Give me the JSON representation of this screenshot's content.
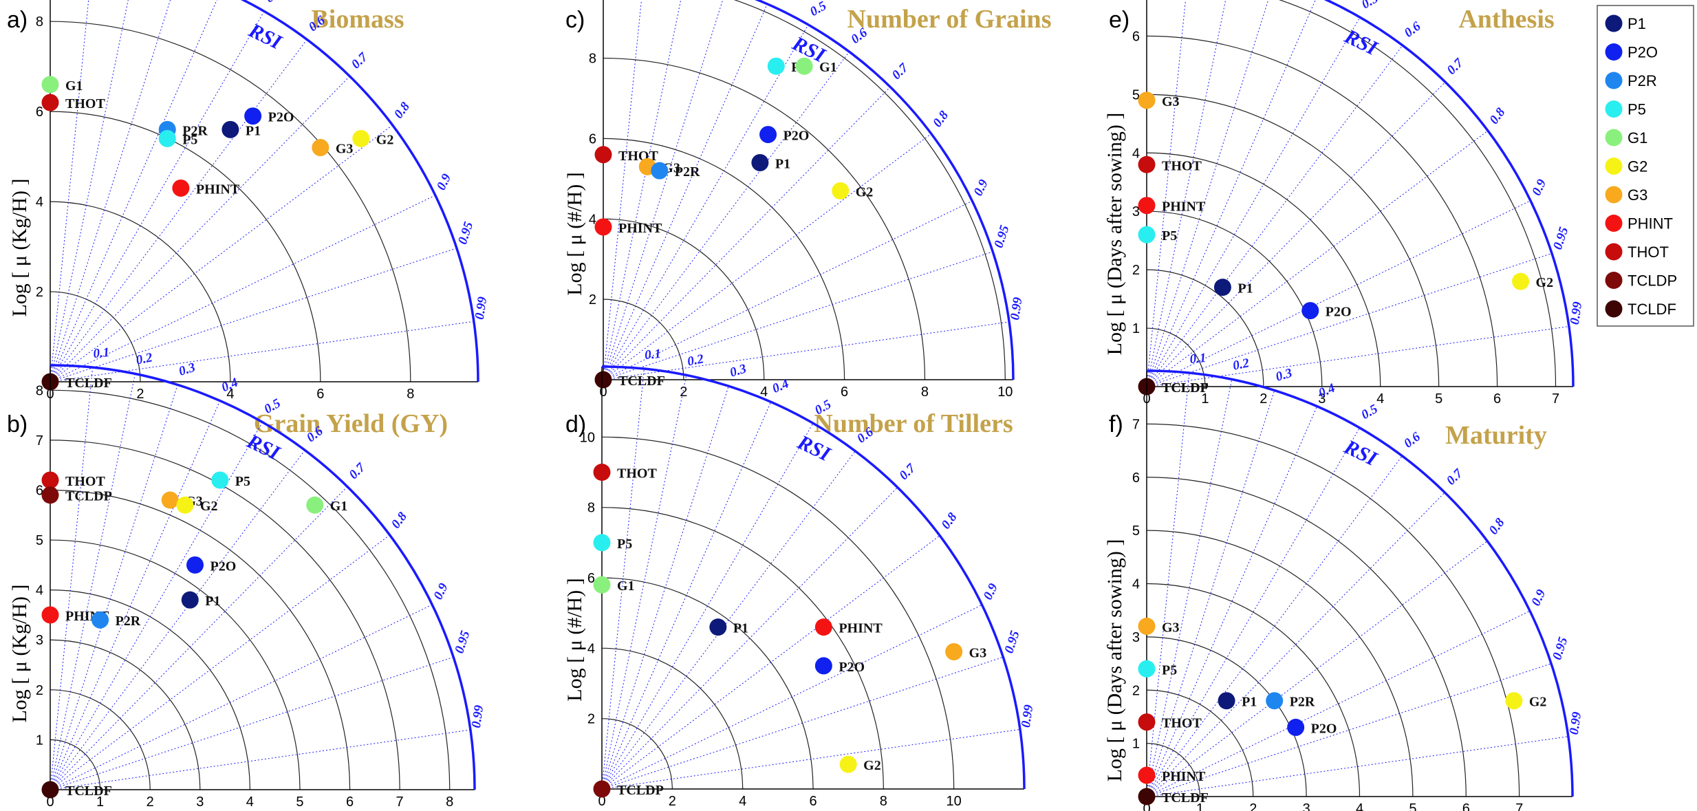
{
  "chart_data": [
    {
      "panel": "a)",
      "title": "Biomass",
      "type": "scatter",
      "subtype": "taylor-diagram",
      "ylabel": "Log [ μ (Kg/H) ]",
      "arc_label": "RSI",
      "rmax": 9.5,
      "ticks": [
        0,
        2,
        4,
        6,
        8
      ],
      "tick_labels": [
        "0",
        "2",
        "4",
        "6",
        "8"
      ],
      "points": [
        {
          "name": "G1",
          "x": 0,
          "y": 6.6
        },
        {
          "name": "THOT",
          "x": 0,
          "y": 6.2
        },
        {
          "name": "P2R",
          "x": 2.6,
          "y": 5.6
        },
        {
          "name": "P5",
          "x": 2.6,
          "y": 5.4
        },
        {
          "name": "P1",
          "x": 4.0,
          "y": 5.6
        },
        {
          "name": "P2O",
          "x": 4.5,
          "y": 5.9
        },
        {
          "name": "G3",
          "x": 6.0,
          "y": 5.2
        },
        {
          "name": "G2",
          "x": 6.9,
          "y": 5.4
        },
        {
          "name": "PHINT",
          "x": 2.9,
          "y": 4.3
        },
        {
          "name": "TCLDF",
          "x": 0,
          "y": 0
        }
      ]
    },
    {
      "panel": "c)",
      "title": "Number of Grains",
      "type": "scatter",
      "subtype": "taylor-diagram",
      "ylabel": "Log [ μ (#/H) ]",
      "arc_label": "RSI",
      "rmax": 10.2,
      "ticks": [
        0,
        2,
        4,
        6,
        8,
        10
      ],
      "tick_labels": [
        "0",
        "2",
        "4",
        "6",
        "8",
        "10"
      ],
      "points": [
        {
          "name": "P5",
          "x": 4.3,
          "y": 7.8
        },
        {
          "name": "G1",
          "x": 5.0,
          "y": 7.8
        },
        {
          "name": "P2O",
          "x": 4.1,
          "y": 6.1
        },
        {
          "name": "P1",
          "x": 3.9,
          "y": 5.4
        },
        {
          "name": "THOT",
          "x": 0,
          "y": 5.6
        },
        {
          "name": "G3",
          "x": 1.1,
          "y": 5.3
        },
        {
          "name": "P2R",
          "x": 1.4,
          "y": 5.2
        },
        {
          "name": "G2",
          "x": 5.9,
          "y": 4.7
        },
        {
          "name": "PHINT",
          "x": 0,
          "y": 3.8
        },
        {
          "name": "TCLDF",
          "x": 0,
          "y": 0
        }
      ]
    },
    {
      "panel": "e)",
      "title": "Anthesis",
      "type": "scatter",
      "subtype": "taylor-diagram",
      "ylabel": "Log [ μ (Days after sowing) ]",
      "arc_label": "RSI",
      "rmax": 7.3,
      "ticks": [
        0,
        1,
        2,
        3,
        4,
        5,
        6,
        7
      ],
      "tick_labels": [
        "0",
        "1",
        "2",
        "3",
        "4",
        "5",
        "6",
        "7"
      ],
      "points": [
        {
          "name": "G3",
          "x": 0,
          "y": 4.9
        },
        {
          "name": "THOT",
          "x": 0,
          "y": 3.8
        },
        {
          "name": "PHINT",
          "x": 0,
          "y": 3.1
        },
        {
          "name": "P5",
          "x": 0,
          "y": 2.6
        },
        {
          "name": "P1",
          "x": 1.3,
          "y": 1.7
        },
        {
          "name": "P2O",
          "x": 2.8,
          "y": 1.3
        },
        {
          "name": "G2",
          "x": 6.4,
          "y": 1.8
        },
        {
          "name": "TCLDF",
          "x": 0,
          "y": 0
        }
      ],
      "overlap_label": "TCLDP"
    },
    {
      "panel": "b)",
      "title": "Grain Yield (GY)",
      "type": "scatter",
      "subtype": "taylor-diagram",
      "ylabel": "Log [ μ (Kg/H) ]",
      "arc_label": "RSI",
      "rmax": 8.5,
      "ticks": [
        0,
        1,
        2,
        3,
        4,
        5,
        6,
        7,
        8
      ],
      "tick_labels": [
        "0",
        "1",
        "2",
        "3",
        "4",
        "5",
        "6",
        "7",
        "8"
      ],
      "points": [
        {
          "name": "THOT",
          "x": 0,
          "y": 6.2
        },
        {
          "name": "TCLDP",
          "x": 0,
          "y": 5.9
        },
        {
          "name": "P5",
          "x": 3.4,
          "y": 6.2
        },
        {
          "name": "G3",
          "x": 2.4,
          "y": 5.8
        },
        {
          "name": "G2",
          "x": 2.7,
          "y": 5.7
        },
        {
          "name": "G1",
          "x": 5.3,
          "y": 5.7
        },
        {
          "name": "P2O",
          "x": 2.9,
          "y": 4.5
        },
        {
          "name": "P1",
          "x": 2.8,
          "y": 3.8
        },
        {
          "name": "PHINT",
          "x": 0,
          "y": 3.5
        },
        {
          "name": "P2R",
          "x": 1.0,
          "y": 3.4
        },
        {
          "name": "TCLDF",
          "x": 0,
          "y": 0
        }
      ]
    },
    {
      "panel": "d)",
      "title": "Number of Tillers",
      "type": "scatter",
      "subtype": "taylor-diagram",
      "ylabel": "Log [ μ (#/H) ]",
      "arc_label": "RSI",
      "rmax": 12,
      "ticks": [
        0,
        2,
        4,
        6,
        8,
        10
      ],
      "tick_labels": [
        "0",
        "2",
        "4",
        "6",
        "8",
        "10"
      ],
      "points": [
        {
          "name": "THOT",
          "x": 0,
          "y": 9.0
        },
        {
          "name": "P5",
          "x": 0,
          "y": 7.0
        },
        {
          "name": "G1",
          "x": 0,
          "y": 5.8
        },
        {
          "name": "P1",
          "x": 3.3,
          "y": 4.6
        },
        {
          "name": "PHINT",
          "x": 6.3,
          "y": 4.6
        },
        {
          "name": "P2O",
          "x": 6.3,
          "y": 3.5
        },
        {
          "name": "G3",
          "x": 10.0,
          "y": 3.9
        },
        {
          "name": "G2",
          "x": 7.0,
          "y": 0.7
        },
        {
          "name": "TCLDP",
          "x": 0,
          "y": 0
        }
      ]
    },
    {
      "panel": "f)",
      "title": "Maturity",
      "type": "scatter",
      "subtype": "taylor-diagram",
      "ylabel": "Log [ μ (Days after sowing) ]",
      "arc_label": "RSI",
      "rmax": 8.0,
      "ticks": [
        0,
        1,
        2,
        3,
        4,
        5,
        6,
        7
      ],
      "tick_labels": [
        "0",
        "1",
        "2",
        "3",
        "4",
        "5",
        "6",
        "7"
      ],
      "points": [
        {
          "name": "G3",
          "x": 0,
          "y": 3.2
        },
        {
          "name": "P5",
          "x": 0,
          "y": 2.4
        },
        {
          "name": "P1",
          "x": 1.5,
          "y": 1.8
        },
        {
          "name": "P2R",
          "x": 2.4,
          "y": 1.8
        },
        {
          "name": "P2O",
          "x": 2.8,
          "y": 1.3
        },
        {
          "name": "G2",
          "x": 6.9,
          "y": 1.8
        },
        {
          "name": "THOT",
          "x": 0,
          "y": 1.4
        },
        {
          "name": "PHINT",
          "x": 0,
          "y": 0.4
        },
        {
          "name": "TCLDF",
          "x": 0,
          "y": 0
        }
      ]
    }
  ],
  "rsi_ticks": [
    "0.1",
    "0.2",
    "0.3",
    "0.4",
    "0.5",
    "0.6",
    "0.7",
    "0.8",
    "0.9",
    "0.95",
    "0.99"
  ],
  "legend": [
    {
      "name": "P1",
      "color": "#0d1a7a"
    },
    {
      "name": "P2O",
      "color": "#1020ee"
    },
    {
      "name": "P2R",
      "color": "#1f86f0"
    },
    {
      "name": "P5",
      "color": "#29eef0"
    },
    {
      "name": "G1",
      "color": "#8af07d"
    },
    {
      "name": "G2",
      "color": "#f7f216"
    },
    {
      "name": "G3",
      "color": "#f8a91d"
    },
    {
      "name": "PHINT",
      "color": "#f41313"
    },
    {
      "name": "THOT",
      "color": "#c60c0c"
    },
    {
      "name": "TCLDP",
      "color": "#7d0909"
    },
    {
      "name": "TCLDF",
      "color": "#3d0404"
    }
  ],
  "colors": {
    "title": "#c4a24a",
    "arc": "#1a1aff",
    "grid": "#222222"
  }
}
